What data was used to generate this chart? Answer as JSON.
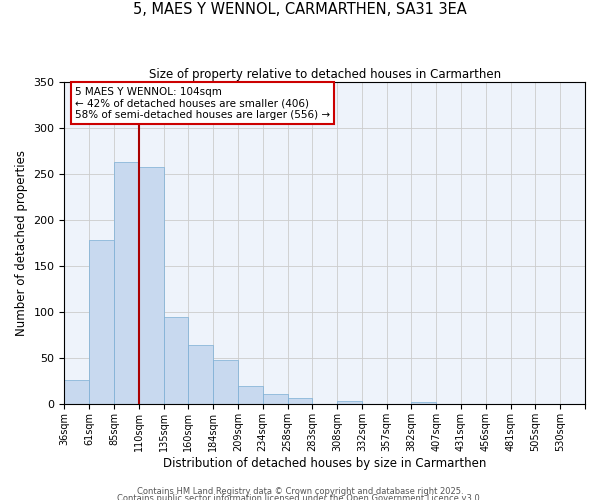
{
  "title": "5, MAES Y WENNOL, CARMARTHEN, SA31 3EA",
  "subtitle": "Size of property relative to detached houses in Carmarthen",
  "xlabel": "Distribution of detached houses by size in Carmarthen",
  "ylabel": "Number of detached properties",
  "bar_color": "#c8d9ef",
  "bar_edge_color": "#7aadd4",
  "bins": [
    "36sqm",
    "61sqm",
    "85sqm",
    "110sqm",
    "135sqm",
    "160sqm",
    "184sqm",
    "209sqm",
    "234sqm",
    "258sqm",
    "283sqm",
    "308sqm",
    "332sqm",
    "357sqm",
    "382sqm",
    "407sqm",
    "431sqm",
    "456sqm",
    "481sqm",
    "505sqm",
    "530sqm"
  ],
  "values": [
    27,
    178,
    263,
    258,
    95,
    64,
    48,
    20,
    11,
    7,
    0,
    4,
    0,
    0,
    3,
    0,
    0,
    0,
    0,
    1,
    0
  ],
  "ylim": [
    0,
    350
  ],
  "vline_x": 3,
  "vline_color": "#aa0000",
  "annotation_text": "5 MAES Y WENNOL: 104sqm\n← 42% of detached houses are smaller (406)\n58% of semi-detached houses are larger (556) →",
  "footer1": "Contains HM Land Registry data © Crown copyright and database right 2025.",
  "footer2": "Contains public sector information licensed under the Open Government Licence v3.0.",
  "grid_color": "#cccccc",
  "background_color": "#eef3fb"
}
